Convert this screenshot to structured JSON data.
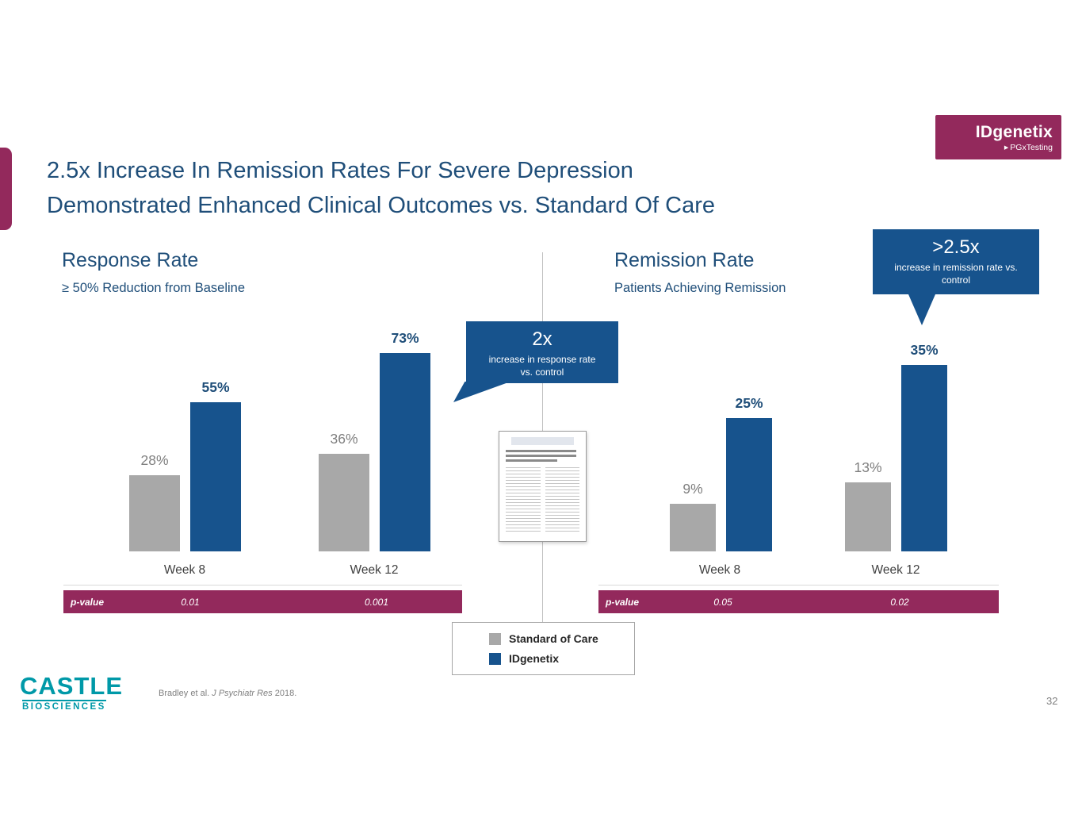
{
  "colors": {
    "title_blue": "#1F4E79",
    "accent_blue": "#17538D",
    "bar_gray": "#A8A8A8",
    "magenta": "#93295C",
    "teal": "#0099A8"
  },
  "slide": {
    "title_line1": "2.5x Increase In Remission Rates For Severe Depression",
    "title_line2": "Demonstrated Enhanced Clinical Outcomes vs. Standard Of Care",
    "page_number": "32"
  },
  "logo": {
    "brand": "IDgenetix",
    "tagline": "PGxTesting"
  },
  "footer": {
    "castle_name": "CASTLE",
    "castle_sub": "BIOSCIENCES",
    "citation_authors": "Bradley et al.",
    "citation_journal": "J Psychiatr Res",
    "citation_year": "2018."
  },
  "legend": {
    "items": [
      {
        "label": "Standard of Care",
        "color": "#A8A8A8"
      },
      {
        "label": "IDgenetix",
        "color": "#17538D"
      }
    ]
  },
  "chart_data": [
    {
      "type": "bar",
      "title": "Response Rate",
      "subtitle": "≥ 50% Reduction from Baseline",
      "categories": [
        "Week 8",
        "Week 12"
      ],
      "series": [
        {
          "name": "Standard of Care",
          "values": [
            28,
            36
          ],
          "color": "#A8A8A8"
        },
        {
          "name": "IDgenetix",
          "values": [
            55,
            73
          ],
          "color": "#17538D"
        }
      ],
      "value_suffix": "%",
      "ylim": [
        0,
        100
      ],
      "grid": false,
      "legend_position": "bottom-center",
      "p_values": {
        "label": "p-value",
        "values": [
          "0.01",
          "0.001"
        ]
      },
      "callout": {
        "headline": "2x",
        "line1": "increase in response rate",
        "line2": "vs. control"
      }
    },
    {
      "type": "bar",
      "title": "Remission Rate",
      "subtitle": "Patients Achieving Remission",
      "categories": [
        "Week 8",
        "Week 12"
      ],
      "series": [
        {
          "name": "Standard of Care",
          "values": [
            9,
            13
          ],
          "color": "#A8A8A8"
        },
        {
          "name": "IDgenetix",
          "values": [
            25,
            35
          ],
          "color": "#17538D"
        }
      ],
      "value_suffix": "%",
      "ylim": [
        0,
        40
      ],
      "grid": false,
      "legend_position": "bottom-center",
      "p_values": {
        "label": "p-value",
        "values": [
          "0.05",
          "0.02"
        ]
      },
      "callout": {
        "headline": ">2.5x",
        "line1": "increase in remission rate vs.",
        "line2": "control"
      }
    }
  ]
}
